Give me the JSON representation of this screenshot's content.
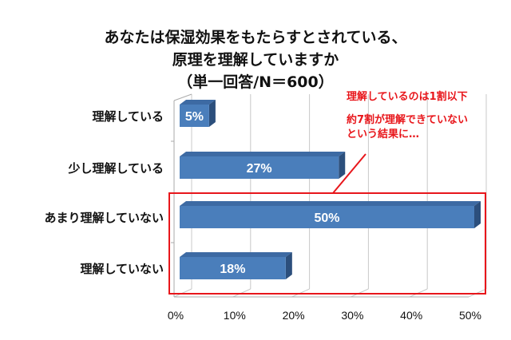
{
  "chart_data": {
    "type": "bar",
    "orientation": "horizontal",
    "title_lines": [
      "あなたは保湿効果をもたらすとされている、",
      "原理を理解していますか",
      "（単一回答/N＝600）"
    ],
    "categories": [
      "理解している",
      "少し理解している",
      "あまり理解していない",
      "理解していない"
    ],
    "values": [
      5,
      27,
      50,
      18
    ],
    "value_labels": [
      "5%",
      "27%",
      "50%",
      "18%"
    ],
    "xticks": [
      "0%",
      "10%",
      "20%",
      "30%",
      "40%",
      "50%"
    ],
    "xlim": [
      0,
      50
    ],
    "grid": true,
    "bar_color": "#4a7ebb",
    "annotation": {
      "lines": [
        "理解しているのは1割以下",
        "約7割が理解できていない",
        "という結果に…"
      ],
      "color": "#e8161b"
    }
  }
}
